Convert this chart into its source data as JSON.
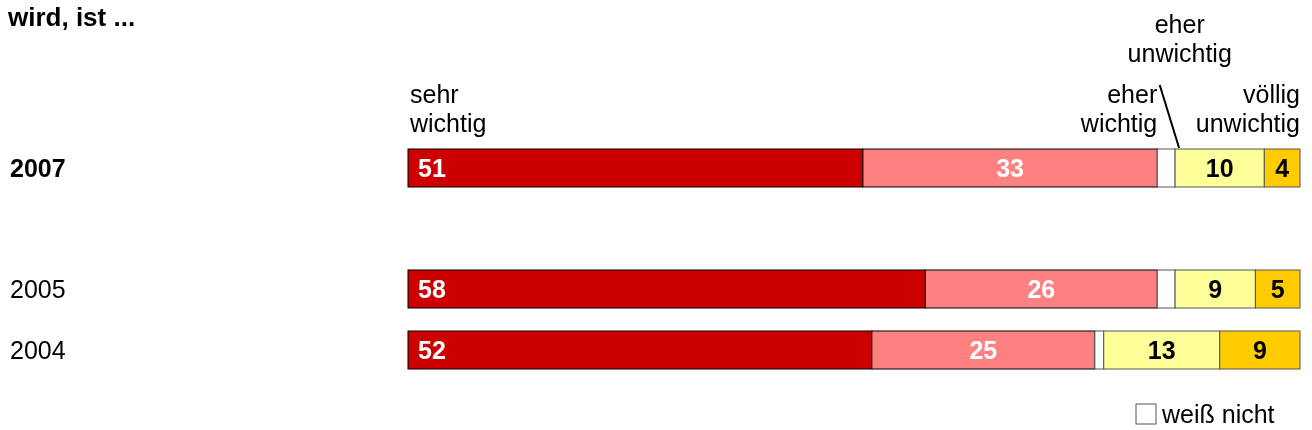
{
  "chart_data": {
    "type": "bar",
    "orientation": "horizontal",
    "stacked": true,
    "title": "wird, ist ...",
    "categories": [
      "2007",
      "2005",
      "2004"
    ],
    "xlim": [
      0,
      100
    ],
    "tick_labels": "y",
    "legend": "bottom right",
    "series": [
      {
        "name": "sehr wichtig",
        "color": "#cc0000",
        "values": [
          51,
          58,
          52
        ],
        "value_labels": [
          "51",
          "58",
          "52"
        ]
      },
      {
        "name": "eher wichtig",
        "color": "#ff8080",
        "values": [
          33,
          26,
          25
        ],
        "value_labels": [
          "33",
          "26",
          "25"
        ]
      },
      {
        "name": "weiß nicht",
        "color": "#ffffff",
        "values": [
          2,
          2,
          1
        ],
        "value_labels": [
          null,
          null,
          null
        ]
      },
      {
        "name": "eher unwichtig",
        "color": "#ffff99",
        "values": [
          10,
          9,
          13
        ],
        "value_labels": [
          "10",
          "9",
          "13"
        ]
      },
      {
        "name": "völlig unwichtig",
        "color": "#ffcc00",
        "values": [
          4,
          5,
          9
        ],
        "value_labels": [
          "4",
          "5",
          "9"
        ]
      }
    ]
  }
}
